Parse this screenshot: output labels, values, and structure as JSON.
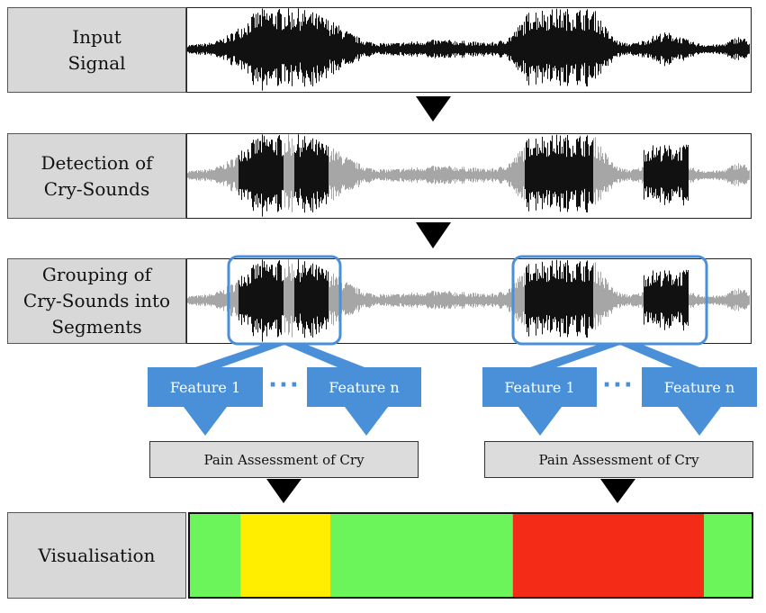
{
  "stages": {
    "input": "Input\nSignal",
    "detection": "Detection of\nCry-Sounds",
    "grouping": "Grouping of\nCry-Sounds into\nSegments",
    "visualisation": "Visualisation"
  },
  "features": {
    "left": {
      "first": "Feature 1",
      "last": "Feature n",
      "ellipsis": "···"
    },
    "right": {
      "first": "Feature 1",
      "last": "Feature n",
      "ellipsis": "···"
    }
  },
  "assessment": {
    "left": "Pain Assessment of Cry",
    "right": "Pain Assessment of Cry"
  },
  "colors": {
    "waveform": "#111111",
    "background_signal": "#a6a6a6",
    "highlight": "#4a90d9",
    "arrow": "#000000",
    "green": "#6cf55a",
    "yellow": "#ffee00",
    "red": "#f42c17"
  },
  "visualisation_segments": [
    {
      "color": "green",
      "from": 0.0,
      "to": 0.09
    },
    {
      "color": "yellow",
      "from": 0.09,
      "to": 0.25
    },
    {
      "color": "green",
      "from": 0.25,
      "to": 0.575
    },
    {
      "color": "red",
      "from": 0.575,
      "to": 0.915
    },
    {
      "color": "green",
      "from": 0.915,
      "to": 1.0
    }
  ]
}
